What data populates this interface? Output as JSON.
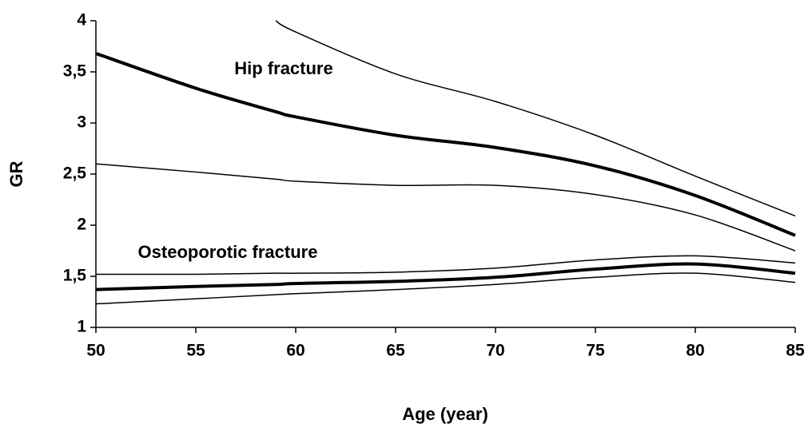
{
  "chart_data": {
    "type": "line",
    "xlabel": "Age (year)",
    "ylabel": "GR",
    "annotations": [
      "Hip fracture",
      "Osteoporotic fracture"
    ],
    "x": [
      50,
      55,
      59,
      60,
      65,
      70,
      75,
      80,
      85
    ],
    "series": [
      {
        "color": "#000000",
        "linewidth": 4,
        "values": [
          3.68,
          3.34,
          3.11,
          3.06,
          2.88,
          2.76,
          2.58,
          2.29,
          1.9
        ]
      },
      {
        "color": "#000000",
        "linewidth": 1.5,
        "values": [
          null,
          null,
          4.0,
          3.89,
          3.48,
          3.21,
          2.88,
          2.48,
          2.09
        ]
      },
      {
        "color": "#000000",
        "linewidth": 1.5,
        "values": [
          2.6,
          2.52,
          2.45,
          2.43,
          2.39,
          2.39,
          2.3,
          2.1,
          1.75
        ]
      },
      {
        "color": "#000000",
        "linewidth": 4,
        "values": [
          1.37,
          1.4,
          1.42,
          1.43,
          1.45,
          1.49,
          1.57,
          1.62,
          1.53
        ]
      },
      {
        "color": "#000000",
        "linewidth": 1.5,
        "values": [
          1.52,
          1.52,
          1.53,
          1.53,
          1.54,
          1.58,
          1.66,
          1.7,
          1.63
        ]
      },
      {
        "color": "#000000",
        "linewidth": 1.5,
        "values": [
          1.23,
          1.28,
          1.32,
          1.33,
          1.37,
          1.42,
          1.49,
          1.53,
          1.44
        ]
      }
    ],
    "xlim": [
      50,
      85
    ],
    "xticks": [
      50,
      55,
      60,
      65,
      70,
      75,
      80,
      85
    ],
    "ylim": [
      1,
      4
    ],
    "yticks": [
      1,
      {
        "value": 1.5,
        "label": "1,5"
      },
      2,
      {
        "value": 2.5,
        "label": "2,5"
      },
      3,
      {
        "value": 3.5,
        "label": "3,5"
      },
      4
    ],
    "grid": false
  }
}
